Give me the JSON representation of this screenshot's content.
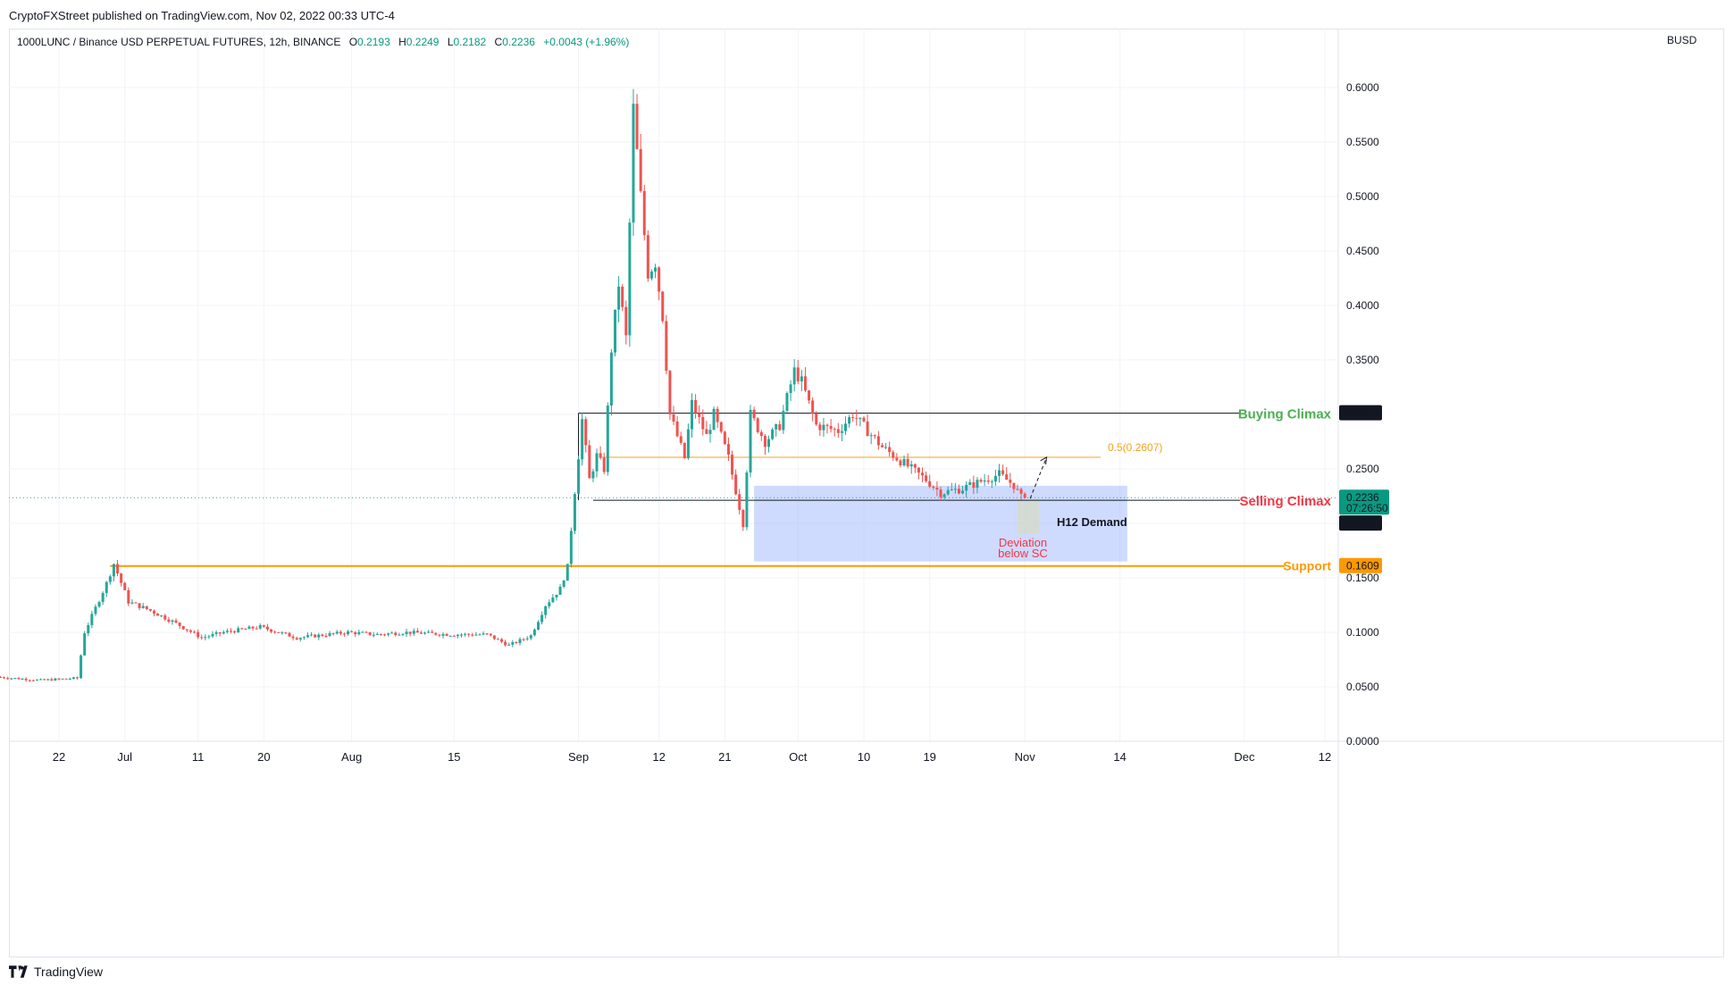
{
  "header": {
    "publisher": "CryptoFXStreet published on TradingView.com, Nov 02, 2022 00:33 UTC-4",
    "symbol": "1000LUNC / Binance USD PERPETUAL FUTURES, 12h, BINANCE",
    "ohlc": {
      "o_label": "O",
      "o": "0.2193",
      "h_label": "H",
      "h": "0.2249",
      "l_label": "L",
      "l": "0.2182",
      "c_label": "C",
      "c": "0.2236",
      "change": "+0.0043 (+1.96%)"
    },
    "currency": "BUSD"
  },
  "footer": {
    "brand": "TradingView"
  },
  "colors": {
    "up": "#26a69a",
    "down": "#ef5350",
    "support": "#ff9800",
    "fib": "#f7a21b",
    "demand_zone": "#9fb5ff",
    "buying_climax": "#4caf50",
    "selling_climax": "#f23645",
    "level_line": "#131722",
    "deviation": "#f23645"
  },
  "chart_data": {
    "type": "candlestick",
    "title": "1000LUNC / Binance USD PERPETUAL FUTURES, 12h, BINANCE",
    "xlabel": "",
    "ylabel": "",
    "grid": true,
    "y_axis_side": "right",
    "ylim": [
      0,
      0.6
    ],
    "yticks": [
      "0.6000",
      "0.5500",
      "0.5000",
      "0.4500",
      "0.4000",
      "0.3500",
      "0.2500",
      "0.1500",
      "0.1000",
      "0.0500",
      "0.0000"
    ],
    "ytick_values": [
      0.6,
      0.55,
      0.5,
      0.45,
      0.4,
      0.35,
      0.25,
      0.15,
      0.1,
      0.05,
      0.0
    ],
    "xlim": [
      "2022-06-14",
      "2022-12-16"
    ],
    "xticks": [
      {
        "label": "22",
        "date": "2022-06-22"
      },
      {
        "label": "Jul",
        "date": "2022-07-01"
      },
      {
        "label": "11",
        "date": "2022-07-11"
      },
      {
        "label": "20",
        "date": "2022-07-20"
      },
      {
        "label": "Aug",
        "date": "2022-08-01"
      },
      {
        "label": "15",
        "date": "2022-08-15"
      },
      {
        "label": "Sep",
        "date": "2022-09-01"
      },
      {
        "label": "12",
        "date": "2022-09-12"
      },
      {
        "label": "21",
        "date": "2022-09-21"
      },
      {
        "label": "Oct",
        "date": "2022-10-01"
      },
      {
        "label": "10",
        "date": "2022-10-10"
      },
      {
        "label": "19",
        "date": "2022-10-19"
      },
      {
        "label": "Nov",
        "date": "2022-11-01"
      },
      {
        "label": "14",
        "date": "2022-11-14"
      },
      {
        "label": "Dec",
        "date": "2022-12-01"
      },
      {
        "label": "12",
        "date": "2022-12-12"
      }
    ],
    "path_key_points": [
      [
        "2022-06-14",
        0.059
      ],
      [
        "2022-06-20",
        0.056
      ],
      [
        "2022-06-25",
        0.058
      ],
      [
        "2022-06-26",
        0.1
      ],
      [
        "2022-06-29",
        0.145
      ],
      [
        "2022-06-30",
        0.163
      ],
      [
        "2022-07-02",
        0.128
      ],
      [
        "2022-07-05",
        0.12
      ],
      [
        "2022-07-08",
        0.11
      ],
      [
        "2022-07-12",
        0.095
      ],
      [
        "2022-07-15",
        0.1
      ],
      [
        "2022-07-20",
        0.105
      ],
      [
        "2022-07-25",
        0.095
      ],
      [
        "2022-08-01",
        0.1
      ],
      [
        "2022-08-05",
        0.098
      ],
      [
        "2022-08-09",
        0.1
      ],
      [
        "2022-08-15",
        0.098
      ],
      [
        "2022-08-20",
        0.098
      ],
      [
        "2022-08-23",
        0.088
      ],
      [
        "2022-08-26",
        0.097
      ],
      [
        "2022-08-28",
        0.125
      ],
      [
        "2022-08-30",
        0.14
      ],
      [
        "2022-08-31",
        0.16
      ],
      [
        "2022-09-01",
        0.23
      ],
      [
        "2022-09-02",
        0.295
      ],
      [
        "2022-09-03",
        0.24
      ],
      [
        "2022-09-04",
        0.262
      ],
      [
        "2022-09-05",
        0.25
      ],
      [
        "2022-09-06",
        0.36
      ],
      [
        "2022-09-07",
        0.42
      ],
      [
        "2022-09-08",
        0.37
      ],
      [
        "2022-09-09",
        0.58
      ],
      [
        "2022-09-10",
        0.5
      ],
      [
        "2022-09-11",
        0.43
      ],
      [
        "2022-09-12",
        0.44
      ],
      [
        "2022-09-13",
        0.39
      ],
      [
        "2022-09-14",
        0.3
      ],
      [
        "2022-09-15",
        0.28
      ],
      [
        "2022-09-16",
        0.26
      ],
      [
        "2022-09-17",
        0.31
      ],
      [
        "2022-09-19",
        0.28
      ],
      [
        "2022-09-20",
        0.3
      ],
      [
        "2022-09-22",
        0.26
      ],
      [
        "2022-09-23",
        0.23
      ],
      [
        "2022-09-24",
        0.2
      ],
      [
        "2022-09-25",
        0.3
      ],
      [
        "2022-09-27",
        0.275
      ],
      [
        "2022-09-29",
        0.29
      ],
      [
        "2022-10-01",
        0.34
      ],
      [
        "2022-10-02",
        0.33
      ],
      [
        "2022-10-04",
        0.29
      ],
      [
        "2022-10-07",
        0.285
      ],
      [
        "2022-10-09",
        0.3
      ],
      [
        "2022-10-11",
        0.285
      ],
      [
        "2022-10-13",
        0.27
      ],
      [
        "2022-10-15",
        0.26
      ],
      [
        "2022-10-17",
        0.25
      ],
      [
        "2022-10-19",
        0.24
      ],
      [
        "2022-10-21",
        0.228
      ],
      [
        "2022-10-24",
        0.232
      ],
      [
        "2022-10-27",
        0.24
      ],
      [
        "2022-10-29",
        0.245
      ],
      [
        "2022-10-31",
        0.235
      ],
      [
        "2022-11-01",
        0.2236
      ]
    ],
    "levels": [
      {
        "name": "Buying Climax",
        "value": 0.3011,
        "label": "0.3011"
      },
      {
        "name": "0.5(0.2607)",
        "value": 0.2607,
        "label": "0.5(0.2607)"
      },
      {
        "name": "Selling Climax",
        "value": 0.2212,
        "label": "0.2212"
      },
      {
        "name": "Support",
        "value": 0.1609,
        "label": "0.1609"
      }
    ],
    "last_price": {
      "value": 0.2236,
      "label": "0.2236",
      "countdown": "07:26:50"
    },
    "zones": [
      {
        "name": "H12 Demand",
        "from": "2022-09-25",
        "to": "2022-11-15",
        "low": 0.165,
        "high": 0.2345
      },
      {
        "name": "Deviation below SC",
        "from": "2022-10-31",
        "to": "2022-11-02",
        "low": 0.191,
        "high": 0.2212
      }
    ],
    "annotations": {
      "buying_climax": "Buying Climax",
      "selling_climax": "Selling Climax",
      "support": "Support",
      "fib": "0.5(0.2607)",
      "demand": "H12 Demand",
      "deviation_line1": "Deviation",
      "deviation_line2": "below SC"
    }
  }
}
